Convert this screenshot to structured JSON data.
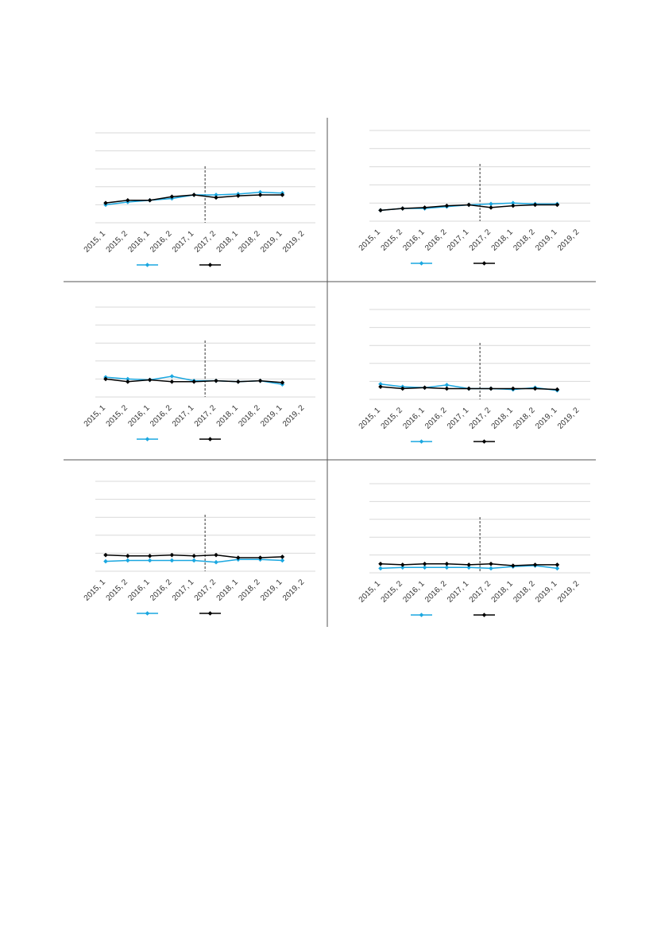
{
  "chart_data": [
    {
      "type": "line",
      "categories": [
        "2015, 1",
        "2015, 2",
        "2016, 1",
        "2016, 2",
        "2017, 1",
        "2017, 2",
        "2018, 1",
        "2018, 2",
        "2019, 1",
        "2019, 2"
      ],
      "ylim": [
        0,
        5
      ],
      "yticks": [
        0,
        1,
        2,
        3,
        4,
        5
      ],
      "grid": true,
      "series": [
        {
          "color": "#1aa7e0",
          "values": [
            1.0,
            1.15,
            1.25,
            1.35,
            1.55,
            1.55,
            1.6,
            1.7,
            1.65,
            null
          ]
        },
        {
          "color": "#000000",
          "values": [
            1.1,
            1.25,
            1.25,
            1.45,
            1.55,
            1.4,
            1.5,
            1.55,
            1.55,
            null
          ]
        }
      ]
    },
    {
      "type": "line",
      "categories": [
        "2015, 1",
        "2015, 2",
        "2016, 1",
        "2016, 2",
        "2017, 1",
        "2017, 2",
        "2018, 1",
        "2018, 2",
        "2019, 1",
        "2019, 2"
      ],
      "ylim": [
        0,
        5
      ],
      "yticks": [
        0,
        1,
        2,
        3,
        4,
        5
      ],
      "grid": true,
      "series": [
        {
          "color": "#1aa7e0",
          "values": [
            0.6,
            0.7,
            0.7,
            0.8,
            0.9,
            0.95,
            1.0,
            0.95,
            0.95,
            null
          ]
        },
        {
          "color": "#000000",
          "values": [
            0.6,
            0.7,
            0.75,
            0.85,
            0.9,
            0.75,
            0.85,
            0.9,
            0.9,
            null
          ]
        }
      ]
    },
    {
      "type": "line",
      "categories": [
        "2015, 1",
        "2015, 2",
        "2016, 1",
        "2016, 2",
        "2017, 1",
        "2017, 2",
        "2018, 1",
        "2018, 2",
        "2019, 1",
        "2019, 2"
      ],
      "ylim": [
        0,
        5
      ],
      "yticks": [
        0,
        1,
        2,
        3,
        4,
        5
      ],
      "grid": true,
      "series": [
        {
          "color": "#1aa7e0",
          "values": [
            1.1,
            1.0,
            0.95,
            1.15,
            0.9,
            0.9,
            0.85,
            0.9,
            0.7,
            null
          ]
        },
        {
          "color": "#000000",
          "values": [
            1.0,
            0.85,
            0.95,
            0.85,
            0.85,
            0.9,
            0.85,
            0.9,
            0.8,
            null
          ]
        }
      ]
    },
    {
      "type": "line",
      "categories": [
        "2015, 1",
        "2015, 2",
        "2016, 1",
        "2016, 2",
        "2017, 1",
        "2017, 2",
        "2018, 1",
        "2018, 2",
        "2019, 1",
        "2019, 2"
      ],
      "ylim": [
        0,
        5
      ],
      "yticks": [
        0,
        1,
        2,
        3,
        4,
        5
      ],
      "grid": true,
      "series": [
        {
          "color": "#1aa7e0",
          "values": [
            0.85,
            0.7,
            0.65,
            0.8,
            0.6,
            0.6,
            0.55,
            0.65,
            0.5,
            null
          ]
        },
        {
          "color": "#000000",
          "values": [
            0.7,
            0.6,
            0.65,
            0.6,
            0.6,
            0.6,
            0.6,
            0.6,
            0.55,
            null
          ]
        }
      ]
    },
    {
      "type": "line",
      "categories": [
        "2015, 1",
        "2015, 2",
        "2016, 1",
        "2016, 2",
        "2017, 1",
        "2017, 2",
        "2018, 1",
        "2018, 2",
        "2019, 1",
        "2019, 2"
      ],
      "ylim": [
        0,
        5
      ],
      "yticks": [
        0,
        1,
        2,
        3,
        4,
        5
      ],
      "grid": true,
      "series": [
        {
          "color": "#1aa7e0",
          "values": [
            0.55,
            0.6,
            0.6,
            0.6,
            0.6,
            0.5,
            0.65,
            0.65,
            0.6,
            null
          ]
        },
        {
          "color": "#000000",
          "values": [
            0.9,
            0.85,
            0.85,
            0.9,
            0.85,
            0.9,
            0.75,
            0.75,
            0.8,
            null
          ]
        }
      ]
    },
    {
      "type": "line",
      "categories": [
        "2015, 1",
        "2015, 2",
        "2016, 1",
        "2016, 2",
        "2017, 1",
        "2017, 2",
        "2018, 1",
        "2018, 2",
        "2019, 1",
        "2019, 2"
      ],
      "ylim": [
        0,
        5
      ],
      "yticks": [
        0,
        1,
        2,
        3,
        4,
        5
      ],
      "grid": true,
      "series": [
        {
          "color": "#1aa7e0",
          "values": [
            0.25,
            0.3,
            0.3,
            0.3,
            0.3,
            0.25,
            0.35,
            0.4,
            0.25,
            null
          ]
        },
        {
          "color": "#000000",
          "values": [
            0.5,
            0.45,
            0.5,
            0.5,
            0.45,
            0.5,
            0.4,
            0.45,
            0.45,
            null
          ]
        }
      ]
    }
  ]
}
